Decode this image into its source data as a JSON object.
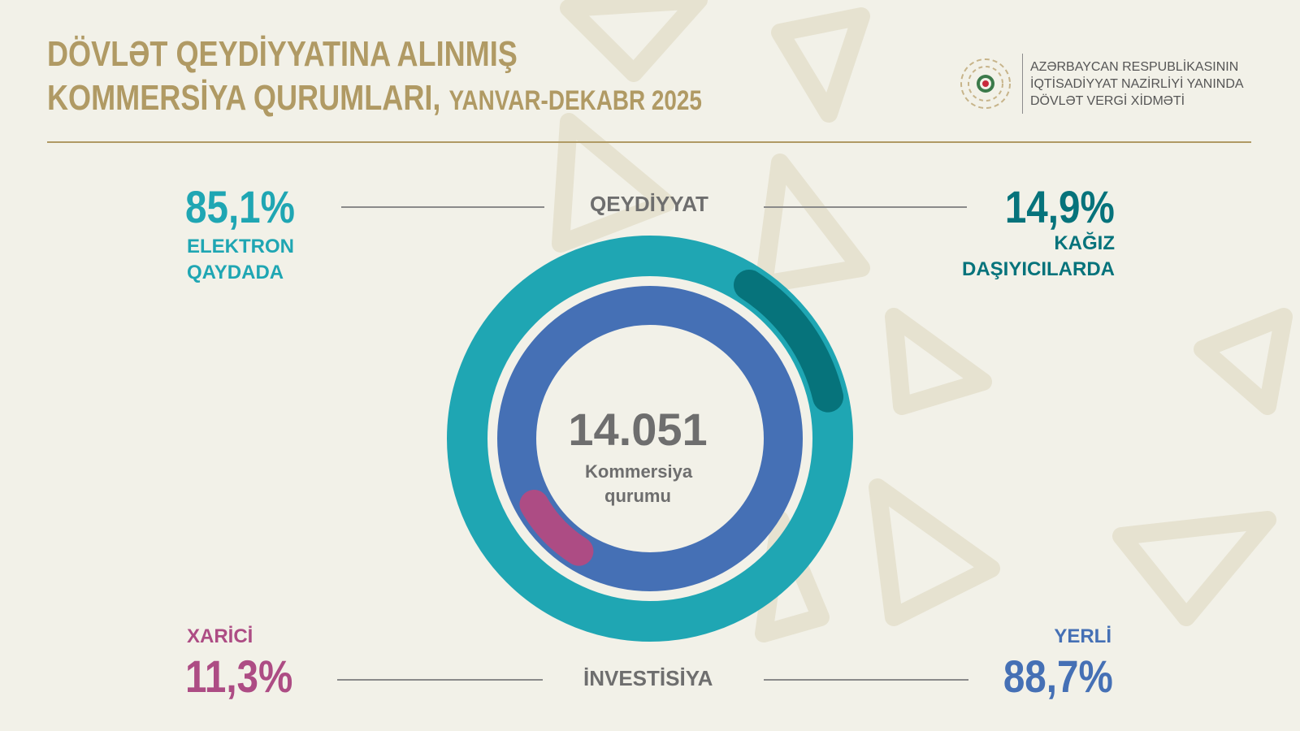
{
  "header": {
    "title_line1": "DÖVLƏT QEYDİYYATINA ALINMIŞ",
    "title_line2": "KOMMERSİYA QURUMLARI,",
    "period": "YANVAR-DEKABR 2025"
  },
  "logo": {
    "line1": "AZƏRBAYCAN RESPUBLİKASININ",
    "line2": "İQTİSADİYYAT NAZİRLİYİ YANINDA",
    "line3": "DÖVLƏT VERGİ XİDMƏTİ"
  },
  "chart_data": {
    "type": "pie",
    "variant": "nested-donut",
    "total": "14.051",
    "total_label": "Kommersiya qurumu",
    "rings": [
      {
        "name": "QEYDİYYAT",
        "ring": "outer",
        "slices": [
          {
            "label": "ELEKTRON QAYDADA",
            "value": 85.1,
            "display": "85,1%",
            "color": "#1fa6b3"
          },
          {
            "label": "KAĞIZ DAŞIYICILARDA",
            "value": 14.9,
            "display": "14,9%",
            "color": "#06737b"
          }
        ]
      },
      {
        "name": "İNVESTİSİYA",
        "ring": "inner",
        "slices": [
          {
            "label": "YERLİ",
            "value": 88.7,
            "display": "88,7%",
            "color": "#4570b5"
          },
          {
            "label": "XARİCİ",
            "value": 11.3,
            "display": "11,3%",
            "color": "#ad4c84"
          }
        ]
      }
    ]
  }
}
